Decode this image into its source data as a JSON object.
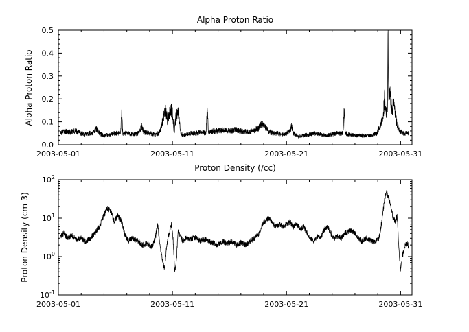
{
  "figure": {
    "background": "#ffffff",
    "line_color": "#000000"
  },
  "chart_data": [
    {
      "type": "line",
      "title": "Alpha Proton Ratio",
      "xlabel": "",
      "ylabel": "Alpha Proton Ratio",
      "yscale": "linear",
      "ylim": [
        0.0,
        0.5
      ],
      "yticks": [
        0.0,
        0.1,
        0.2,
        0.3,
        0.4,
        0.5
      ],
      "ytick_labels": [
        "0.0",
        "0.1",
        "0.2",
        "0.3",
        "0.4",
        "0.5"
      ],
      "y_minor_step": 0.02,
      "x_unit": "days since 2003-05-01",
      "xlim_days": [
        0,
        31
      ],
      "xticks_days": [
        0,
        10,
        20,
        30
      ],
      "xtick_labels": [
        "2003-05-01",
        "2003-05-11",
        "2003-05-21",
        "2003-05-31"
      ],
      "x_minor_step_days": 2,
      "grid": false,
      "legend": "none",
      "series": [
        {
          "name": "alpha_proton_ratio",
          "color": "#000000",
          "noise_frac": 0.2,
          "points": [
            [
              0.2,
              0.05
            ],
            [
              0.5,
              0.06
            ],
            [
              1.0,
              0.055
            ],
            [
              1.5,
              0.06
            ],
            [
              2.0,
              0.05
            ],
            [
              2.3,
              0.045
            ],
            [
              2.6,
              0.05
            ],
            [
              3.0,
              0.05
            ],
            [
              3.3,
              0.07
            ],
            [
              3.6,
              0.05
            ],
            [
              4.0,
              0.04
            ],
            [
              4.5,
              0.045
            ],
            [
              5.0,
              0.05
            ],
            [
              5.45,
              0.05
            ],
            [
              5.55,
              0.13
            ],
            [
              5.65,
              0.05
            ],
            [
              6.0,
              0.05
            ],
            [
              6.5,
              0.045
            ],
            [
              7.0,
              0.05
            ],
            [
              7.3,
              0.08
            ],
            [
              7.5,
              0.055
            ],
            [
              8.0,
              0.05
            ],
            [
              8.5,
              0.045
            ],
            [
              8.8,
              0.05
            ],
            [
              9.0,
              0.07
            ],
            [
              9.2,
              0.12
            ],
            [
              9.4,
              0.15
            ],
            [
              9.6,
              0.1
            ],
            [
              9.8,
              0.16
            ],
            [
              10.0,
              0.14
            ],
            [
              10.15,
              0.05
            ],
            [
              10.3,
              0.12
            ],
            [
              10.5,
              0.15
            ],
            [
              10.7,
              0.06
            ],
            [
              10.9,
              0.04
            ],
            [
              11.2,
              0.045
            ],
            [
              11.6,
              0.05
            ],
            [
              12.0,
              0.05
            ],
            [
              12.5,
              0.055
            ],
            [
              12.95,
              0.05
            ],
            [
              13.05,
              0.17
            ],
            [
              13.15,
              0.05
            ],
            [
              13.5,
              0.06
            ],
            [
              14.0,
              0.06
            ],
            [
              14.5,
              0.065
            ],
            [
              15.0,
              0.06
            ],
            [
              15.5,
              0.065
            ],
            [
              16.0,
              0.06
            ],
            [
              16.5,
              0.055
            ],
            [
              17.0,
              0.06
            ],
            [
              17.5,
              0.07
            ],
            [
              17.8,
              0.09
            ],
            [
              18.1,
              0.08
            ],
            [
              18.4,
              0.06
            ],
            [
              18.8,
              0.05
            ],
            [
              19.2,
              0.05
            ],
            [
              19.6,
              0.045
            ],
            [
              20.0,
              0.05
            ],
            [
              20.3,
              0.06
            ],
            [
              20.45,
              0.08
            ],
            [
              20.6,
              0.05
            ],
            [
              21.0,
              0.035
            ],
            [
              21.4,
              0.04
            ],
            [
              22.0,
              0.045
            ],
            [
              22.5,
              0.05
            ],
            [
              23.0,
              0.045
            ],
            [
              23.5,
              0.04
            ],
            [
              24.0,
              0.045
            ],
            [
              24.5,
              0.05
            ],
            [
              24.95,
              0.05
            ],
            [
              25.05,
              0.16
            ],
            [
              25.15,
              0.05
            ],
            [
              25.6,
              0.045
            ],
            [
              26.0,
              0.04
            ],
            [
              26.5,
              0.04
            ],
            [
              27.0,
              0.04
            ],
            [
              27.5,
              0.04
            ],
            [
              27.9,
              0.05
            ],
            [
              28.2,
              0.08
            ],
            [
              28.45,
              0.12
            ],
            [
              28.6,
              0.2
            ],
            [
              28.7,
              0.13
            ],
            [
              28.8,
              0.17
            ],
            [
              28.85,
              0.15
            ],
            [
              28.9,
              0.46
            ],
            [
              28.95,
              0.2
            ],
            [
              29.1,
              0.22
            ],
            [
              29.25,
              0.15
            ],
            [
              29.4,
              0.18
            ],
            [
              29.55,
              0.12
            ],
            [
              29.7,
              0.09
            ],
            [
              29.9,
              0.06
            ],
            [
              30.2,
              0.05
            ],
            [
              30.7,
              0.05
            ]
          ]
        }
      ]
    },
    {
      "type": "line",
      "title": "Proton Density (/cc)",
      "xlabel": "",
      "ylabel": "Proton Density (cm-3)",
      "yscale": "log",
      "ylim": [
        0.1,
        100
      ],
      "ytick_exponents": [
        -1,
        0,
        1,
        2
      ],
      "x_unit": "days since 2003-05-01",
      "xlim_days": [
        0,
        31
      ],
      "xticks_days": [
        0,
        10,
        20,
        30
      ],
      "xtick_labels": [
        "2003-05-01",
        "2003-05-11",
        "2003-05-21",
        "2003-05-31"
      ],
      "x_minor_step_days": 2,
      "grid": false,
      "legend": "none",
      "series": [
        {
          "name": "proton_density",
          "color": "#000000",
          "noise_log10": 0.07,
          "points": [
            [
              0.2,
              3.5
            ],
            [
              0.5,
              4
            ],
            [
              0.8,
              3
            ],
            [
              1.2,
              3.5
            ],
            [
              1.6,
              2.8
            ],
            [
              2.0,
              3
            ],
            [
              2.4,
              2.5
            ],
            [
              2.8,
              3
            ],
            [
              3.2,
              4
            ],
            [
              3.6,
              6
            ],
            [
              4.0,
              12
            ],
            [
              4.3,
              18
            ],
            [
              4.6,
              15
            ],
            [
              4.9,
              8
            ],
            [
              5.2,
              12
            ],
            [
              5.5,
              9
            ],
            [
              5.8,
              4
            ],
            [
              6.1,
              2.5
            ],
            [
              6.5,
              3
            ],
            [
              7.0,
              2.5
            ],
            [
              7.4,
              2
            ],
            [
              7.8,
              2.2
            ],
            [
              8.2,
              1.8
            ],
            [
              8.5,
              3
            ],
            [
              8.7,
              7
            ],
            [
              8.9,
              2
            ],
            [
              9.1,
              0.9
            ],
            [
              9.3,
              0.45
            ],
            [
              9.5,
              2
            ],
            [
              9.7,
              4
            ],
            [
              9.9,
              7
            ],
            [
              10.05,
              3
            ],
            [
              10.2,
              0.4
            ],
            [
              10.35,
              0.8
            ],
            [
              10.5,
              5
            ],
            [
              10.7,
              3.5
            ],
            [
              10.9,
              2.5
            ],
            [
              11.2,
              3
            ],
            [
              11.6,
              2.8
            ],
            [
              12.0,
              3.2
            ],
            [
              12.4,
              2.5
            ],
            [
              12.8,
              2.8
            ],
            [
              13.2,
              2.5
            ],
            [
              13.6,
              2.2
            ],
            [
              14.0,
              2
            ],
            [
              14.4,
              2.5
            ],
            [
              14.8,
              2.2
            ],
            [
              15.2,
              2.5
            ],
            [
              15.6,
              2
            ],
            [
              16.0,
              2.3
            ],
            [
              16.4,
              2
            ],
            [
              16.8,
              2.5
            ],
            [
              17.2,
              3
            ],
            [
              17.6,
              4
            ],
            [
              17.9,
              7
            ],
            [
              18.2,
              9
            ],
            [
              18.5,
              10
            ],
            [
              18.8,
              7
            ],
            [
              19.1,
              6
            ],
            [
              19.4,
              7
            ],
            [
              19.7,
              6
            ],
            [
              20.0,
              7
            ],
            [
              20.3,
              8
            ],
            [
              20.6,
              6
            ],
            [
              20.9,
              7
            ],
            [
              21.2,
              5
            ],
            [
              21.5,
              6
            ],
            [
              21.8,
              4
            ],
            [
              22.1,
              3
            ],
            [
              22.4,
              2.5
            ],
            [
              22.7,
              3.5
            ],
            [
              23.0,
              3
            ],
            [
              23.3,
              5
            ],
            [
              23.6,
              6
            ],
            [
              23.9,
              4
            ],
            [
              24.2,
              3
            ],
            [
              24.5,
              3.5
            ],
            [
              24.8,
              3
            ],
            [
              25.1,
              4
            ],
            [
              25.4,
              4.5
            ],
            [
              25.7,
              5
            ],
            [
              26.0,
              4
            ],
            [
              26.3,
              3
            ],
            [
              26.6,
              2.5
            ],
            [
              27.0,
              3
            ],
            [
              27.4,
              2.6
            ],
            [
              27.8,
              2.4
            ],
            [
              28.1,
              3
            ],
            [
              28.35,
              8
            ],
            [
              28.55,
              25
            ],
            [
              28.75,
              50
            ],
            [
              28.95,
              35
            ],
            [
              29.15,
              20
            ],
            [
              29.35,
              10
            ],
            [
              29.55,
              8
            ],
            [
              29.7,
              12
            ],
            [
              29.85,
              1.5
            ],
            [
              30.0,
              0.45
            ],
            [
              30.15,
              1
            ],
            [
              30.4,
              2
            ],
            [
              30.6,
              2.2
            ],
            [
              30.7,
              1.8
            ]
          ]
        }
      ]
    }
  ]
}
